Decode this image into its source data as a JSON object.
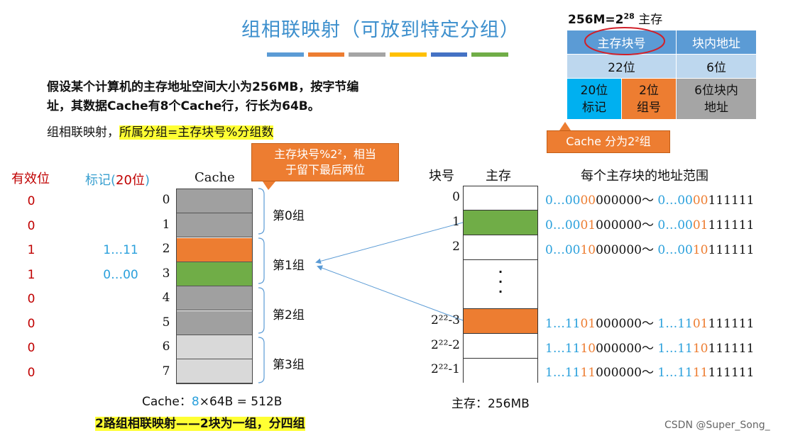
{
  "title": "组相联映射（可放到特定分组）",
  "title_bar_colors": [
    "#5b9bd5",
    "#ed7d31",
    "#a5a5a5",
    "#ffc000",
    "#4472c4",
    "#70ad47"
  ],
  "problem": {
    "line1": "假设某个计算机的主存地址空间大小为256MB，按字节编",
    "line2": "址，其数据Cache有8个Cache行，行长为64B。"
  },
  "rule": {
    "prefix": "组相联映射，",
    "highlight": "所属分组=主存块号%分组数"
  },
  "callout": {
    "line1": "主存块号%2²，相当",
    "line2": "于留下最后两位"
  },
  "headers": {
    "valid": "有效位",
    "tag_prefix": "标记(",
    "tag_bits": "20位",
    "tag_suffix": ")",
    "cache": "Cache",
    "block_no": "块号",
    "memory": "主存",
    "addr_range": "每个主存块的地址范围"
  },
  "cache_lines": [
    {
      "index": "0",
      "valid": "0",
      "tag": "",
      "color": "#a0a0a0"
    },
    {
      "index": "1",
      "valid": "0",
      "tag": "",
      "color": "#a0a0a0"
    },
    {
      "index": "2",
      "valid": "1",
      "tag": "1…11",
      "color": "#ed7d31"
    },
    {
      "index": "3",
      "valid": "1",
      "tag": "0…00",
      "color": "#70ad47"
    },
    {
      "index": "4",
      "valid": "0",
      "tag": "",
      "color": "#a0a0a0"
    },
    {
      "index": "5",
      "valid": "0",
      "tag": "",
      "color": "#a0a0a0"
    },
    {
      "index": "6",
      "valid": "0",
      "tag": "",
      "color": "#d9d9d9"
    },
    {
      "index": "7",
      "valid": "0",
      "tag": "",
      "color": "#d9d9d9"
    }
  ],
  "groups": [
    "第0组",
    "第1组",
    "第2组",
    "第3组"
  ],
  "memory_blocks": [
    {
      "label": "0",
      "fill": "#ffffff",
      "addr": [
        [
          "0…00",
          "b"
        ],
        [
          "00",
          "o"
        ],
        [
          "000000～ ",
          "k"
        ],
        [
          "0…00",
          "b"
        ],
        [
          "00",
          "o"
        ],
        [
          "111111",
          "k"
        ]
      ]
    },
    {
      "label": "1",
      "fill": "#70ad47",
      "addr": [
        [
          "0…00",
          "b"
        ],
        [
          "01",
          "o"
        ],
        [
          "000000～ ",
          "k"
        ],
        [
          "0…00",
          "b"
        ],
        [
          "01",
          "o"
        ],
        [
          "111111",
          "k"
        ]
      ]
    },
    {
      "label": "2",
      "fill": "#ffffff",
      "addr": [
        [
          "0…00",
          "b"
        ],
        [
          "10",
          "o"
        ],
        [
          "000000～ ",
          "k"
        ],
        [
          "0…00",
          "b"
        ],
        [
          "10",
          "o"
        ],
        [
          "111111",
          "k"
        ]
      ]
    },
    {
      "label": "",
      "fill": "#ffffff",
      "addr": []
    },
    {
      "label": "2²²-3",
      "fill": "#ed7d31",
      "addr": [
        [
          "1…11",
          "b"
        ],
        [
          "01",
          "o"
        ],
        [
          "000000～ ",
          "k"
        ],
        [
          "1…11",
          "b"
        ],
        [
          "01",
          "o"
        ],
        [
          "111111",
          "k"
        ]
      ]
    },
    {
      "label": "2²²-2",
      "fill": "#ffffff",
      "addr": [
        [
          "1…11",
          "b"
        ],
        [
          "10",
          "o"
        ],
        [
          "000000～ ",
          "k"
        ],
        [
          "1…11",
          "b"
        ],
        [
          "10",
          "o"
        ],
        [
          "111111",
          "k"
        ]
      ]
    },
    {
      "label": "2²²-1",
      "fill": "#ffffff",
      "addr": [
        [
          "1…11",
          "b"
        ],
        [
          "11",
          "o"
        ],
        [
          "000000～ ",
          "k"
        ],
        [
          "1…11",
          "b"
        ],
        [
          "11",
          "o"
        ],
        [
          "111111",
          "k"
        ]
      ]
    }
  ],
  "ellipsis": "·\n·\n·",
  "address_structure": {
    "top_note_prefix": "256M=2",
    "top_note_exp": "28",
    "top_note_suffix": " 主存",
    "header": [
      "主存块号",
      "块内地址"
    ],
    "bits_row": [
      "22位",
      "6位"
    ],
    "split_row": [
      "20位\n标记",
      "2位\n组号",
      "6位块内\n地址"
    ],
    "colors": {
      "header": "#5b9bd5",
      "row2": "#bdd7ee",
      "tag": "#00b0f0",
      "group": "#ed7d31",
      "offset": "#a5a5a5"
    }
  },
  "cache_note": "Cache 分为2²组",
  "cache_summary": {
    "prefix": "Cache：",
    "num": "8",
    "suffix": "×64B = 512B"
  },
  "memory_summary": "主存：256MB",
  "conclusion": "2路组相联映射——2块为一组，分四组",
  "watermark": "CSDN @Super_Song_"
}
